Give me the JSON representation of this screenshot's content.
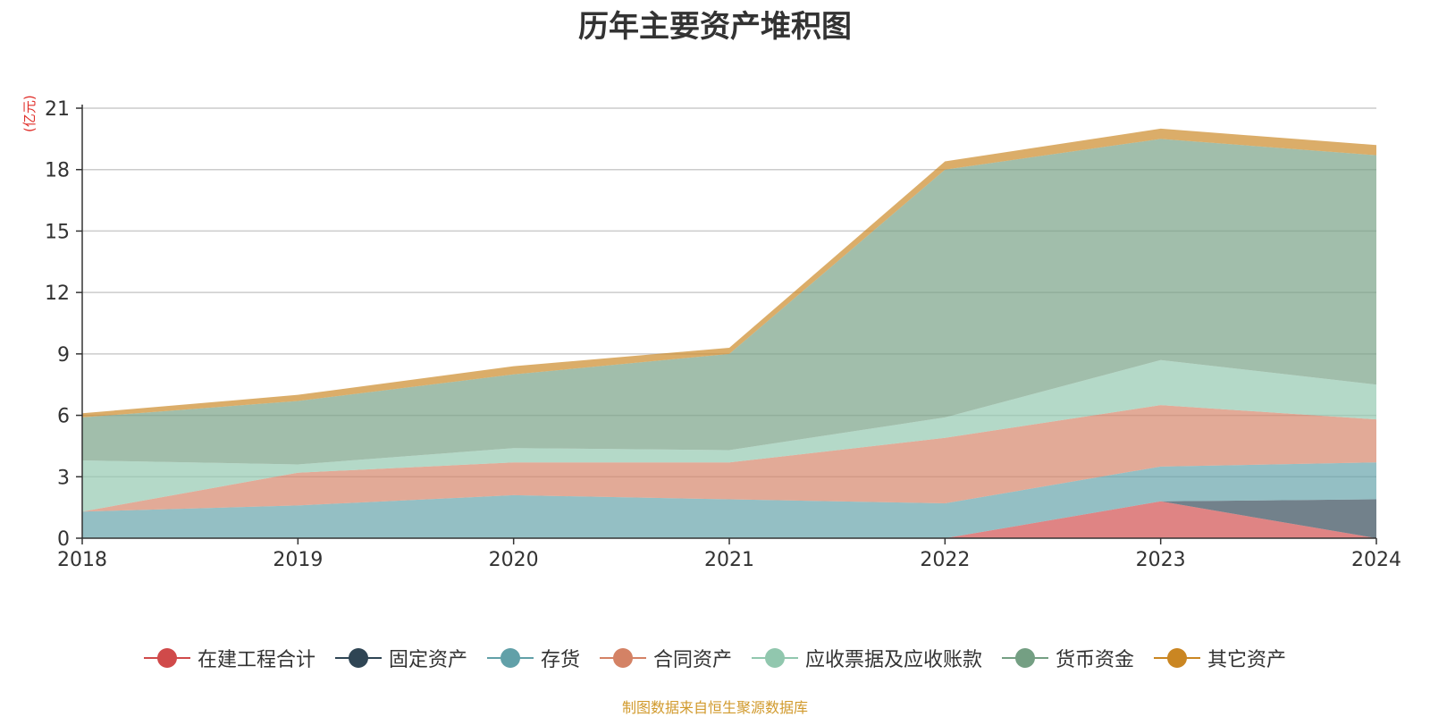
{
  "chart_data": {
    "type": "area",
    "stacked": true,
    "title": "历年主要资产堆积图",
    "unit_label": "(亿元)",
    "x": [
      "2018",
      "2019",
      "2020",
      "2021",
      "2022",
      "2023",
      "2024"
    ],
    "ylim": [
      0,
      21
    ],
    "yticks": [
      "0",
      "3",
      "6",
      "9",
      "12",
      "15",
      "18",
      "21"
    ],
    "grid": true,
    "legend_position": "bottom",
    "series": [
      {
        "name": "在建工程合计",
        "color": "#d04a4a",
        "values": [
          0,
          0,
          0,
          0,
          0,
          1.8,
          0
        ]
      },
      {
        "name": "固定资产",
        "color": "#2f4554",
        "values": [
          0,
          0,
          0,
          0,
          0,
          0,
          1.9
        ]
      },
      {
        "name": "存货",
        "color": "#61a0a8",
        "values": [
          1.3,
          1.6,
          2.1,
          1.9,
          1.7,
          1.7,
          1.8
        ]
      },
      {
        "name": "合同资产",
        "color": "#d48265",
        "values": [
          0,
          1.6,
          1.6,
          1.8,
          3.2,
          3.0,
          2.1
        ]
      },
      {
        "name": "应收票据及应收账款",
        "color": "#91c7ae",
        "values": [
          2.5,
          0.4,
          0.7,
          0.6,
          1.0,
          2.2,
          1.7
        ]
      },
      {
        "name": "货币资金",
        "color": "#749f83",
        "values": [
          2.1,
          3.1,
          3.6,
          4.7,
          12.1,
          10.8,
          11.2
        ]
      },
      {
        "name": "其它资产",
        "color": "#ca8622",
        "values": [
          0.2,
          0.3,
          0.4,
          0.3,
          0.4,
          0.5,
          0.5
        ]
      }
    ],
    "source_note": "制图数据来自恒生聚源数据库"
  }
}
